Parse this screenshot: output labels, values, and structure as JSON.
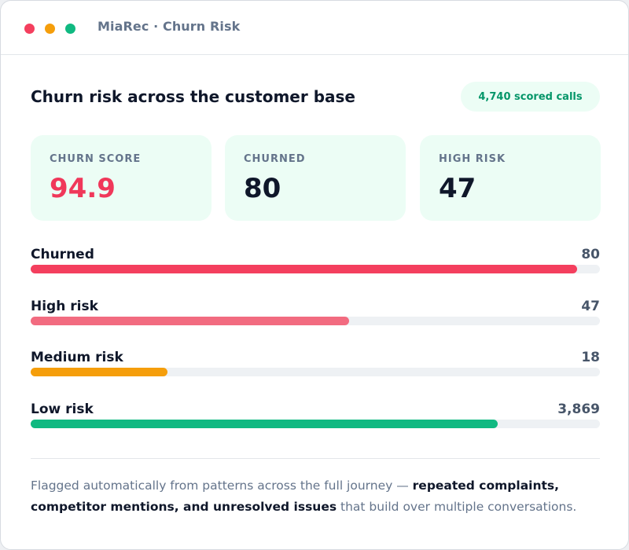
{
  "window": {
    "title": "MiaRec · Churn Risk",
    "dots": [
      {
        "name": "close",
        "color": "#f43f5e"
      },
      {
        "name": "minimize",
        "color": "#f59e0b"
      },
      {
        "name": "maximize",
        "color": "#10b981"
      }
    ]
  },
  "header": {
    "title": "Churn risk across the customer base",
    "badge": "4,740 scored calls"
  },
  "stats": [
    {
      "label": "CHURN SCORE",
      "value": "94.9",
      "value_color": "#f0385a"
    },
    {
      "label": "CHURNED",
      "value": "80",
      "value_color": "#0f172a"
    },
    {
      "label": "HIGH RISK",
      "value": "47",
      "value_color": "#0f172a"
    }
  ],
  "risk_bars": [
    {
      "label": "Churned",
      "value": "80",
      "fill_fraction": 0.96,
      "color": "#f43f5e"
    },
    {
      "label": "High risk",
      "value": "47",
      "fill_fraction": 0.56,
      "color": "#f26b80"
    },
    {
      "label": "Medium risk",
      "value": "18",
      "fill_fraction": 0.24,
      "color": "#f59e0b"
    },
    {
      "label": "Low risk",
      "value": "3,869",
      "fill_fraction": 0.82,
      "color": "#10b981"
    }
  ],
  "footer": {
    "text_before": "Flagged automatically from patterns across the full journey — ",
    "text_bold": "repeated complaints, competitor mentions, and unresolved issues",
    "text_after": " that build over multiple conversations."
  },
  "colors": {
    "card_bg": "#ecfdf5",
    "badge_bg": "#ecfdf5",
    "badge_text": "#059669"
  }
}
